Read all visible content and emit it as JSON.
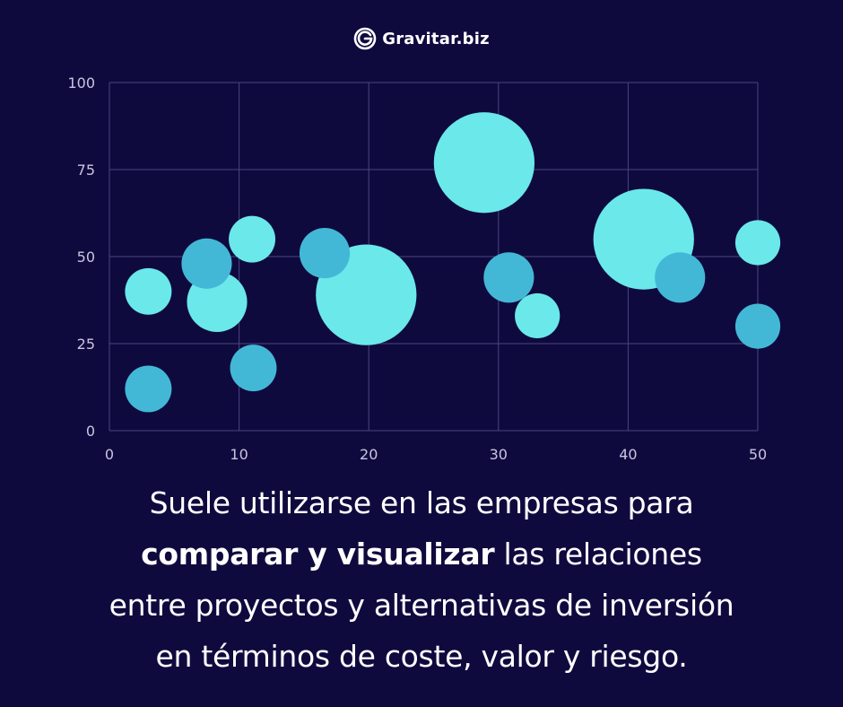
{
  "brand": {
    "name": "Gravitar.biz",
    "logo_icon": "gravitar-g-logo-icon"
  },
  "chart_data": {
    "type": "scatter",
    "variant": "bubble",
    "title": "",
    "xlabel": "",
    "ylabel": "",
    "xlim": [
      0,
      50
    ],
    "ylim": [
      0,
      100
    ],
    "x_ticks": [
      0,
      10,
      20,
      30,
      40,
      50
    ],
    "y_ticks": [
      0,
      25,
      50,
      75,
      100
    ],
    "grid": true,
    "colors": {
      "light": "#6ae8ea",
      "dark": "#43b8d6",
      "grid": "#4a4580",
      "background": "#0f0a3e"
    },
    "points": [
      {
        "x": 3,
        "y": 40,
        "size": 3,
        "shade": "light"
      },
      {
        "x": 3,
        "y": 12,
        "size": 3,
        "shade": "dark"
      },
      {
        "x": 8.3,
        "y": 37,
        "size": 5,
        "shade": "light"
      },
      {
        "x": 7.5,
        "y": 48,
        "size": 3.5,
        "shade": "dark"
      },
      {
        "x": 11,
        "y": 55,
        "size": 3,
        "shade": "light"
      },
      {
        "x": 11.1,
        "y": 18,
        "size": 3,
        "shade": "dark"
      },
      {
        "x": 16.6,
        "y": 51,
        "size": 3.5,
        "shade": "dark"
      },
      {
        "x": 19.8,
        "y": 39,
        "size": 14,
        "shade": "light"
      },
      {
        "x": 28.9,
        "y": 77,
        "size": 14,
        "shade": "light"
      },
      {
        "x": 30.8,
        "y": 44,
        "size": 3.5,
        "shade": "dark"
      },
      {
        "x": 33,
        "y": 33,
        "size": 2.8,
        "shade": "light"
      },
      {
        "x": 41.2,
        "y": 55,
        "size": 14,
        "shade": "light"
      },
      {
        "x": 44,
        "y": 44,
        "size": 3.5,
        "shade": "dark"
      },
      {
        "x": 50,
        "y": 54,
        "size": 2.8,
        "shade": "light"
      },
      {
        "x": 50,
        "y": 30,
        "size": 2.8,
        "shade": "dark"
      }
    ]
  },
  "caption": {
    "line1": "Suele utilizarse en las empresas para",
    "line2_bold": "comparar y visualizar",
    "line2_rest": " las relaciones",
    "line3": "entre proyectos y alternativas de inversión",
    "line4": "en términos de coste, valor y riesgo."
  }
}
